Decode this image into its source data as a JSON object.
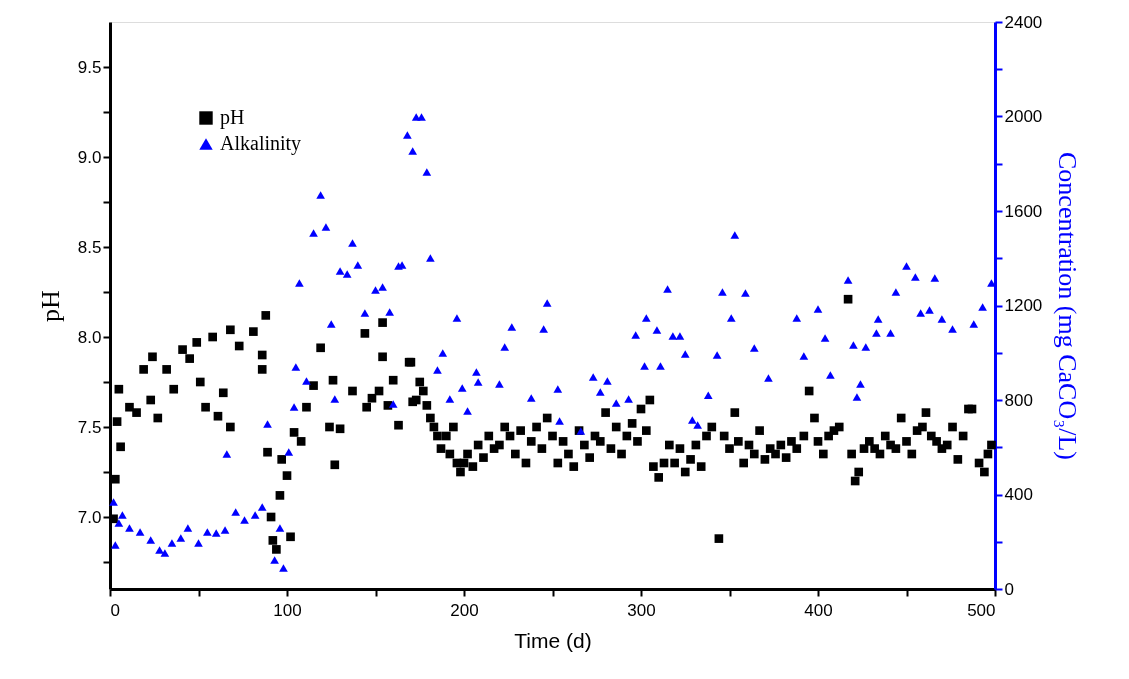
{
  "chart_data": {
    "type": "scatter",
    "xlabel": "Time (d)",
    "ylabel": "pH",
    "y2label": "Concentration (mg CaCO₃/L)",
    "xlim": [
      0,
      500
    ],
    "xticks": [
      0,
      {
        "value": 50,
        "label": null
      },
      100,
      {
        "value": 150,
        "label": null
      },
      200,
      {
        "value": 250,
        "label": null
      },
      300,
      {
        "value": 350,
        "label": null
      },
      400,
      {
        "value": 450,
        "label": null
      },
      500
    ],
    "ylim": [
      6.6,
      9.75
    ],
    "yticks": [
      {
        "value": 6.75,
        "label": null
      },
      {
        "value": 7,
        "label": "7.0"
      },
      {
        "value": 7.25,
        "label": null
      },
      7.5,
      {
        "value": 7.75,
        "label": null
      },
      {
        "value": 8,
        "label": "8.0"
      },
      {
        "value": 8.25,
        "label": null
      },
      8.5,
      {
        "value": 8.75,
        "label": null
      },
      {
        "value": 9,
        "label": "9.0"
      },
      {
        "value": 9.25,
        "label": null
      },
      9.5
    ],
    "y2lim": [
      0,
      2400
    ],
    "y2ticks": [
      0,
      {
        "value": 200,
        "label": null
      },
      400,
      {
        "value": 600,
        "label": null
      },
      800,
      {
        "value": 1000,
        "label": null
      },
      1200,
      {
        "value": 1400,
        "label": null
      },
      1600,
      {
        "value": 1800,
        "label": null
      },
      2000,
      {
        "value": 2200,
        "label": null
      },
      2400
    ],
    "grid": false,
    "legend": "top left",
    "series": [
      {
        "name": "pH",
        "color": "#000000",
        "marker": "square",
        "x": [
          2,
          3,
          4,
          5,
          6,
          11,
          15,
          19,
          23,
          24,
          27,
          32,
          36,
          41,
          45,
          49,
          51,
          54,
          58,
          61,
          64,
          68,
          68,
          73,
          81,
          86,
          86,
          88,
          89,
          91,
          92,
          94,
          96,
          97,
          100,
          102,
          104,
          108,
          111,
          115,
          119,
          124,
          126,
          127,
          130,
          137,
          144,
          145,
          148,
          152,
          154,
          154,
          157,
          160,
          163,
          169,
          170,
          171,
          173,
          175,
          177,
          179,
          181,
          183,
          185,
          187,
          190,
          192,
          194,
          196,
          198,
          200,
          202,
          205,
          208,
          211,
          214,
          217,
          220,
          223,
          226,
          229,
          232,
          235,
          238,
          241,
          244,
          247,
          250,
          253,
          256,
          259,
          262,
          265,
          268,
          271,
          274,
          277,
          280,
          283,
          286,
          289,
          292,
          295,
          298,
          300,
          303,
          305,
          307,
          310,
          313,
          316,
          319,
          322,
          325,
          328,
          331,
          334,
          337,
          340,
          344,
          347,
          350,
          353,
          355,
          358,
          361,
          364,
          367,
          370,
          373,
          376,
          379,
          382,
          385,
          388,
          392,
          395,
          398,
          400,
          403,
          406,
          409,
          412,
          417,
          419,
          421,
          423,
          426,
          429,
          432,
          435,
          438,
          441,
          444,
          447,
          450,
          453,
          456,
          459,
          461,
          464,
          467,
          470,
          473,
          476,
          479,
          482,
          485,
          487,
          491,
          494,
          496,
          498
        ],
        "values": [
          6.99,
          7.21,
          7.53,
          7.71,
          7.39,
          7.61,
          7.58,
          7.82,
          7.65,
          7.89,
          7.55,
          7.82,
          7.71,
          7.93,
          7.88,
          7.97,
          7.75,
          7.61,
          8.0,
          7.56,
          7.69,
          7.5,
          8.04,
          7.95,
          8.03,
          7.9,
          7.82,
          8.12,
          7.36,
          7.0,
          6.87,
          6.82,
          7.12,
          7.32,
          7.23,
          6.89,
          7.47,
          7.42,
          7.61,
          7.73,
          7.94,
          7.5,
          7.76,
          7.29,
          7.49,
          7.7,
          8.02,
          7.61,
          7.66,
          7.7,
          7.89,
          8.08,
          7.62,
          7.76,
          7.51,
          7.86,
          7.86,
          7.64,
          7.65,
          7.75,
          7.7,
          7.62,
          7.55,
          7.5,
          7.45,
          7.38,
          7.45,
          7.35,
          7.5,
          7.3,
          7.25,
          7.3,
          7.35,
          7.28,
          7.4,
          7.33,
          7.45,
          7.38,
          7.4,
          7.5,
          7.45,
          7.35,
          7.48,
          7.3,
          7.42,
          7.5,
          7.38,
          7.55,
          7.45,
          7.3,
          7.42,
          7.35,
          7.28,
          7.48,
          7.4,
          7.33,
          7.45,
          7.42,
          7.58,
          7.38,
          7.5,
          7.35,
          7.45,
          7.52,
          7.42,
          7.6,
          7.48,
          7.65,
          7.28,
          7.22,
          7.3,
          7.4,
          7.3,
          7.38,
          7.25,
          7.32,
          7.4,
          7.28,
          7.45,
          7.5,
          6.88,
          7.45,
          7.38,
          7.58,
          7.42,
          7.3,
          7.4,
          7.35,
          7.48,
          7.32,
          7.38,
          7.35,
          7.4,
          7.33,
          7.42,
          7.38,
          7.45,
          7.7,
          7.55,
          7.42,
          7.35,
          7.45,
          7.48,
          7.5,
          8.21,
          7.35,
          7.2,
          7.25,
          7.38,
          7.42,
          7.38,
          7.35,
          7.45,
          7.4,
          7.38,
          7.55,
          7.42,
          7.35,
          7.48,
          7.5,
          7.58,
          7.45,
          7.42,
          7.38,
          7.4,
          7.5,
          7.32,
          7.45,
          7.6,
          7.6,
          7.3,
          7.25,
          7.35,
          7.4
        ]
      },
      {
        "name": "Alkalinity",
        "color": "#0000ff",
        "marker": "triangle",
        "axis": "y2",
        "x": [
          2,
          3,
          5,
          7,
          11,
          17,
          23,
          28,
          31,
          35,
          40,
          44,
          50,
          55,
          60,
          65,
          66,
          71,
          76,
          82,
          86,
          89,
          93,
          96,
          98,
          101,
          104,
          105,
          107,
          111,
          115,
          119,
          122,
          125,
          127,
          130,
          134,
          137,
          140,
          144,
          150,
          154,
          158,
          160,
          163,
          165,
          168,
          171,
          173,
          176,
          179,
          181,
          185,
          188,
          192,
          196,
          199,
          202,
          207,
          208,
          220,
          223,
          227,
          238,
          245,
          247,
          253,
          254,
          266,
          273,
          277,
          281,
          286,
          293,
          297,
          302,
          303,
          309,
          311,
          315,
          318,
          322,
          325,
          329,
          332,
          338,
          343,
          346,
          351,
          353,
          359,
          364,
          372,
          388,
          392,
          400,
          404,
          407,
          417,
          420,
          422,
          424,
          427,
          433,
          434,
          441,
          444,
          450,
          455,
          458,
          463,
          466,
          470,
          476,
          488,
          493,
          498
        ],
        "values": [
          368,
          186,
          279,
          313,
          258,
          241,
          207,
          165,
          152,
          195,
          216,
          258,
          195,
          241,
          237,
          250,
          571,
          326,
          292,
          313,
          347,
          698,
          123,
          258,
          89,
          580,
          770,
          940,
          1295,
          880,
          1507,
          1668,
          1532,
          1122,
          804,
          1346,
          1333,
          1465,
          1371,
          1168,
          1266,
          1278,
          1173,
          783,
          1367,
          1371,
          1922,
          1854,
          1998,
          1998,
          1765,
          1401,
          927,
          999,
          804,
          1147,
          851,
          753,
          919,
          876,
          868,
          1024,
          1109,
          808,
          1101,
          1211,
          847,
          711,
          669,
          897,
          834,
          880,
          787,
          804,
          1075,
          944,
          1147,
          1096,
          944,
          1270,
          1071,
          1071,
          995,
          715,
          694,
          820,
          990,
          1257,
          1147,
          1498,
          1253,
          1020,
          893,
          1147,
          986,
          1185,
          1062,
          906,
          1308,
          1033,
          813,
          868,
          1024,
          1084,
          1143,
          1084,
          1257,
          1367,
          1321,
          1168,
          1181,
          1316,
          1143,
          1101,
          1122,
          1194,
          1295
        ]
      }
    ]
  }
}
